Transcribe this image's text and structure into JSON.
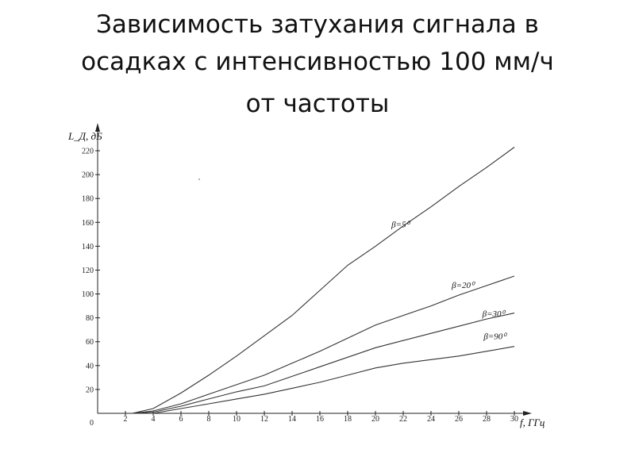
{
  "title": {
    "line1": "Зависимость затухания сигнала в",
    "line2": "осадках с  интенсивностью 100 мм/ч",
    "line3": "от частоты"
  },
  "chart_data": {
    "type": "line",
    "ylabel": "L_Д, дБ",
    "xlabel": "f, ГГц",
    "xlim": [
      0,
      30
    ],
    "ylim": [
      0,
      225
    ],
    "x_ticks": [
      2,
      4,
      6,
      8,
      10,
      12,
      14,
      16,
      18,
      20,
      22,
      24,
      26,
      28,
      30
    ],
    "y_ticks": [
      20,
      40,
      60,
      80,
      100,
      120,
      140,
      160,
      180,
      200,
      220
    ],
    "origin_label": "0",
    "series": [
      {
        "name": "β=5⁰",
        "label_x": 21.8,
        "label_y": 156,
        "x": [
          2.5,
          4,
          6,
          8,
          10,
          12,
          14,
          16,
          18,
          20,
          22,
          24,
          26,
          28,
          30
        ],
        "y": [
          0,
          4,
          17,
          32,
          48,
          65,
          82,
          103,
          124,
          140,
          157,
          173,
          190,
          206,
          223
        ]
      },
      {
        "name": "β=20⁰",
        "label_x": 26.3,
        "label_y": 105,
        "x": [
          2.5,
          4,
          6,
          8,
          10,
          12,
          14,
          16,
          18,
          20,
          22,
          24,
          26,
          28,
          30
        ],
        "y": [
          0,
          2,
          8,
          16,
          24,
          32,
          42,
          52,
          63,
          74,
          82,
          90,
          99,
          107,
          115
        ]
      },
      {
        "name": "β=30⁰",
        "label_x": 28.5,
        "label_y": 81,
        "x": [
          2.5,
          4,
          6,
          8,
          10,
          12,
          14,
          16,
          18,
          20,
          22,
          24,
          26,
          28,
          30
        ],
        "y": [
          0,
          1,
          6,
          12,
          18,
          23,
          31,
          39,
          47,
          55,
          61,
          67,
          73,
          79,
          84
        ]
      },
      {
        "name": "β=90⁰",
        "label_x": 28.6,
        "label_y": 62,
        "x": [
          2.5,
          4,
          6,
          8,
          10,
          12,
          14,
          16,
          18,
          20,
          22,
          24,
          26,
          28,
          30
        ],
        "y": [
          0,
          0,
          4,
          8,
          12,
          16,
          21,
          26,
          32,
          38,
          42,
          45,
          48,
          52,
          56
        ]
      }
    ]
  }
}
